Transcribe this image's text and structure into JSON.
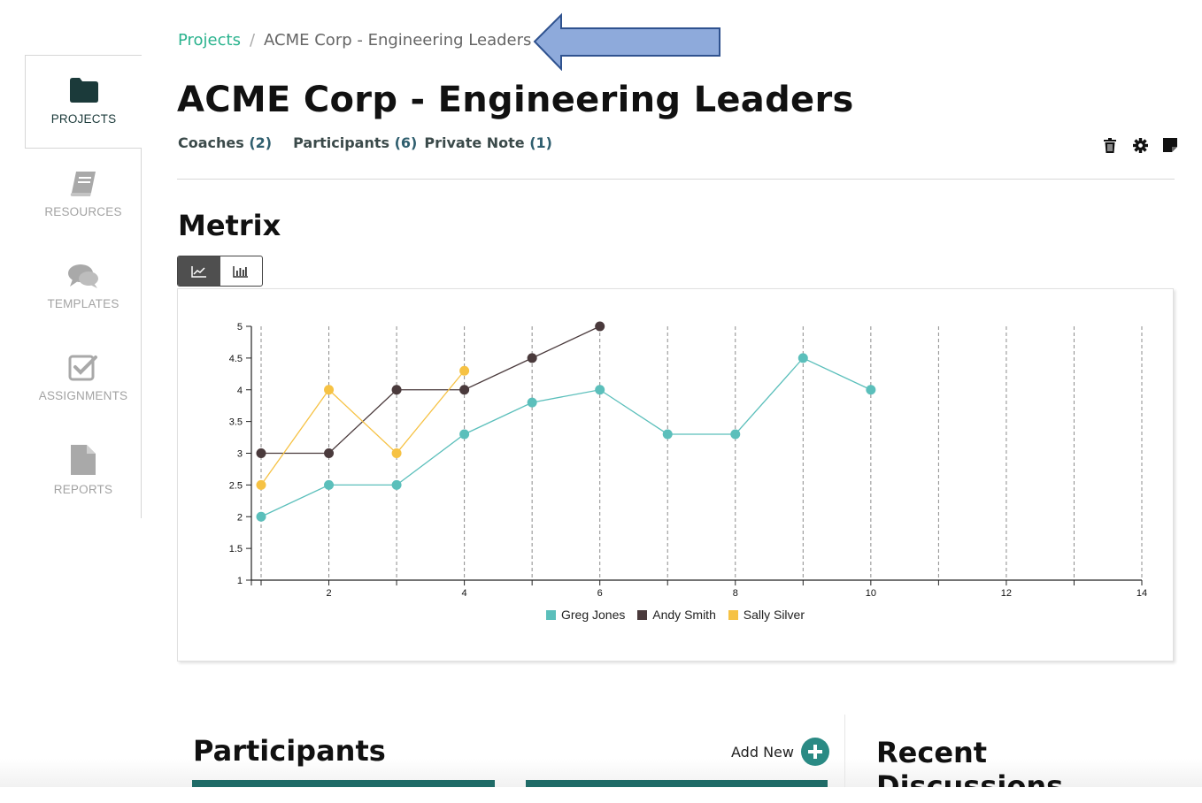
{
  "sidebar": {
    "items": [
      {
        "label": "PROJECTS",
        "icon": "folder-icon"
      },
      {
        "label": "RESOURCES",
        "icon": "book-icon"
      },
      {
        "label": "TEMPLATES",
        "icon": "chat-bubbles-icon"
      },
      {
        "label": "ASSIGNMENTS",
        "icon": "checkbox-icon"
      },
      {
        "label": "REPORTS",
        "icon": "document-icon"
      }
    ]
  },
  "breadcrumb": {
    "parent": "Projects",
    "separator": "/",
    "current": "ACME Corp - Engineering Leaders"
  },
  "header": {
    "title": "ACME Corp - Engineering Leaders",
    "tabs": [
      {
        "label": "Coaches",
        "count": "(2)"
      },
      {
        "label": "Participants",
        "count": "(6)"
      },
      {
        "label": "Private Note",
        "count": "(1)"
      }
    ],
    "toolbar": [
      "trash-icon",
      "gear-icon",
      "note-icon"
    ]
  },
  "metrix": {
    "title": "Metrix",
    "views": [
      "line-chart-icon",
      "bar-chart-icon"
    ],
    "active_view": "line"
  },
  "chart_data": {
    "type": "line",
    "xlim": [
      1,
      14
    ],
    "ylim": [
      1,
      5
    ],
    "x_ticks": [
      2,
      4,
      6,
      8,
      10,
      12,
      14
    ],
    "y_ticks": [
      1,
      1.5,
      2,
      2.5,
      3,
      3.5,
      4,
      4.5,
      5
    ],
    "vertical_grid": "dashed",
    "legend": "bottom-center",
    "series": [
      {
        "name": "Greg Jones",
        "color": "#5bbfbb",
        "x": [
          1,
          2,
          3,
          4,
          5,
          6,
          7,
          8,
          9,
          10
        ],
        "y": [
          2,
          2.5,
          2.5,
          3.3,
          3.8,
          4,
          3.3,
          3.3,
          4.5,
          4
        ]
      },
      {
        "name": "Andy Smith",
        "color": "#4a3a3c",
        "x": [
          1,
          2,
          3,
          4,
          5,
          6
        ],
        "y": [
          3,
          3,
          4,
          4,
          4.5,
          5
        ]
      },
      {
        "name": "Sally Silver",
        "color": "#f6c244",
        "x": [
          1,
          2,
          3,
          4
        ],
        "y": [
          2.5,
          4,
          3,
          4.3
        ]
      }
    ]
  },
  "participants": {
    "title": "Participants",
    "add_label": "Add New"
  },
  "recent": {
    "title": "Recent Discussions"
  },
  "colors": {
    "accent": "#2bb38e",
    "teal_dark": "#1f6b67",
    "sidebar_active": "#1b3a3a",
    "sidebar_inactive": "#a3a3a3"
  }
}
